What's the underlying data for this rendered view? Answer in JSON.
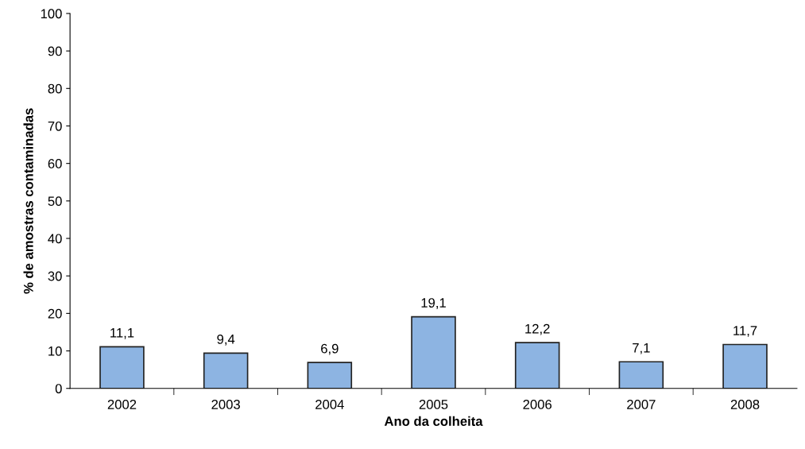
{
  "chart_data": {
    "type": "bar",
    "xlabel": "Ano da colheita",
    "ylabel": "% de amostras contaminadas",
    "categories": [
      "2002",
      "2003",
      "2004",
      "2005",
      "2006",
      "2007",
      "2008"
    ],
    "values": [
      11.1,
      9.4,
      6.9,
      19.1,
      12.2,
      7.1,
      11.7
    ],
    "value_labels": [
      "11,1",
      "9,4",
      "6,9",
      "19,1",
      "12,2",
      "7,1",
      "11,7"
    ],
    "color": "#8db4e2",
    "ylim": [
      0,
      100
    ],
    "yticks": [
      0,
      10,
      20,
      30,
      40,
      50,
      60,
      70,
      80,
      90,
      100
    ],
    "grid": false
  }
}
